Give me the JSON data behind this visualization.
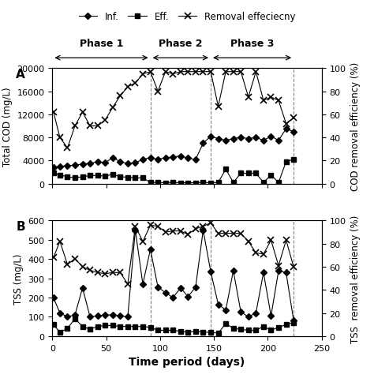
{
  "panel_A": {
    "inf_x": [
      1,
      7,
      14,
      21,
      28,
      35,
      42,
      49,
      56,
      63,
      70,
      77,
      84,
      91,
      98,
      105,
      112,
      119,
      126,
      133,
      140,
      147,
      154,
      161,
      168,
      175,
      182,
      189,
      196,
      203,
      210,
      217,
      224
    ],
    "inf_y": [
      2800,
      3000,
      3100,
      3200,
      3400,
      3500,
      3800,
      3600,
      4500,
      3800,
      3500,
      3600,
      4200,
      4500,
      4200,
      4500,
      4600,
      4800,
      4400,
      4200,
      7000,
      8200,
      7800,
      7500,
      7800,
      8000,
      7800,
      8000,
      7500,
      8200,
      7500,
      9500,
      9000
    ],
    "eff_x": [
      1,
      7,
      14,
      21,
      28,
      35,
      42,
      49,
      56,
      63,
      70,
      77,
      84,
      91,
      98,
      105,
      112,
      119,
      126,
      133,
      140,
      147,
      154,
      161,
      168,
      175,
      182,
      189,
      196,
      203,
      210,
      217,
      224
    ],
    "eff_y": [
      1800,
      1500,
      1200,
      1000,
      1200,
      1400,
      1400,
      1300,
      1600,
      1200,
      1100,
      1000,
      1000,
      200,
      200,
      150,
      200,
      150,
      150,
      150,
      200,
      150,
      200,
      2500,
      200,
      1800,
      1800,
      1800,
      200,
      1500,
      200,
      3800,
      4200
    ],
    "rem_x": [
      1,
      7,
      14,
      21,
      28,
      35,
      42,
      49,
      56,
      63,
      70,
      77,
      84,
      91,
      98,
      105,
      112,
      119,
      126,
      133,
      140,
      147,
      154,
      161,
      168,
      175,
      182,
      189,
      196,
      203,
      210,
      217,
      224
    ],
    "rem_y": [
      62,
      40,
      31,
      50,
      62,
      50,
      50,
      55,
      66,
      76,
      84,
      87,
      95,
      97,
      80,
      97,
      95,
      97,
      97,
      97,
      97,
      97,
      67,
      97,
      97,
      97,
      75,
      97,
      72,
      75,
      72,
      52,
      57
    ],
    "ylim": [
      0,
      20000
    ],
    "yticks": [
      0,
      4000,
      8000,
      12000,
      16000,
      20000
    ],
    "ylabel_left": "Total COD (mg/L)",
    "ylabel_right": "COD removal efficiency (%)",
    "phase1_x": 91,
    "phase2_x": 147,
    "phase3_x": 224
  },
  "panel_B": {
    "inf_x": [
      1,
      7,
      14,
      21,
      28,
      35,
      42,
      49,
      56,
      63,
      70,
      77,
      84,
      91,
      98,
      105,
      112,
      119,
      126,
      133,
      140,
      147,
      154,
      161,
      168,
      175,
      182,
      189,
      196,
      203,
      210,
      217,
      224
    ],
    "inf_y": [
      200,
      120,
      100,
      110,
      250,
      100,
      105,
      110,
      110,
      105,
      100,
      550,
      270,
      450,
      255,
      225,
      200,
      250,
      205,
      255,
      550,
      335,
      165,
      135,
      340,
      125,
      100,
      120,
      330,
      105,
      340,
      330,
      80
    ],
    "eff_x": [
      1,
      7,
      14,
      21,
      28,
      35,
      42,
      49,
      56,
      63,
      70,
      77,
      84,
      91,
      98,
      105,
      112,
      119,
      126,
      133,
      140,
      147,
      154,
      161,
      168,
      175,
      182,
      189,
      196,
      203,
      210,
      217,
      224
    ],
    "eff_y": [
      60,
      20,
      40,
      90,
      50,
      35,
      50,
      55,
      55,
      50,
      50,
      50,
      50,
      45,
      30,
      30,
      30,
      25,
      20,
      25,
      20,
      20,
      15,
      65,
      40,
      35,
      30,
      30,
      50,
      30,
      45,
      60,
      70
    ],
    "rem_x": [
      1,
      7,
      14,
      21,
      28,
      35,
      42,
      49,
      56,
      63,
      70,
      77,
      84,
      91,
      98,
      105,
      112,
      119,
      126,
      133,
      140,
      147,
      154,
      161,
      168,
      175,
      182,
      189,
      196,
      203,
      210,
      217,
      224
    ],
    "rem_y": [
      68,
      82,
      62,
      67,
      60,
      57,
      55,
      54,
      55,
      55,
      45,
      95,
      82,
      96,
      95,
      90,
      91,
      91,
      88,
      93,
      95,
      98,
      89,
      89,
      89,
      89,
      82,
      72,
      71,
      83,
      61,
      83,
      60
    ],
    "ylim": [
      0,
      600
    ],
    "yticks": [
      0,
      100,
      200,
      300,
      400,
      500,
      600
    ],
    "ylabel_left": "TSS (mg/L)",
    "ylabel_right": "TSS  removal efficiency (%)",
    "phase1_x": 91,
    "phase2_x": 147,
    "phase3_x": 224
  },
  "legend_labels": [
    "Inf.",
    "Eff.",
    "Removal effeciecny"
  ],
  "xlabel": "Time period (days)",
  "xlim": [
    0,
    250
  ],
  "xticks": [
    0,
    50,
    100,
    150,
    200,
    250
  ],
  "phase1_label": "Phase 1",
  "phase2_label": "Phase 2",
  "phase3_label": "Phase 3",
  "line_color": "black",
  "marker_inf": "D",
  "marker_eff": "s",
  "marker_rem": "x",
  "marker_size": 4,
  "fontsize": 9,
  "right_yticks": [
    0,
    20,
    40,
    60,
    80,
    100
  ]
}
